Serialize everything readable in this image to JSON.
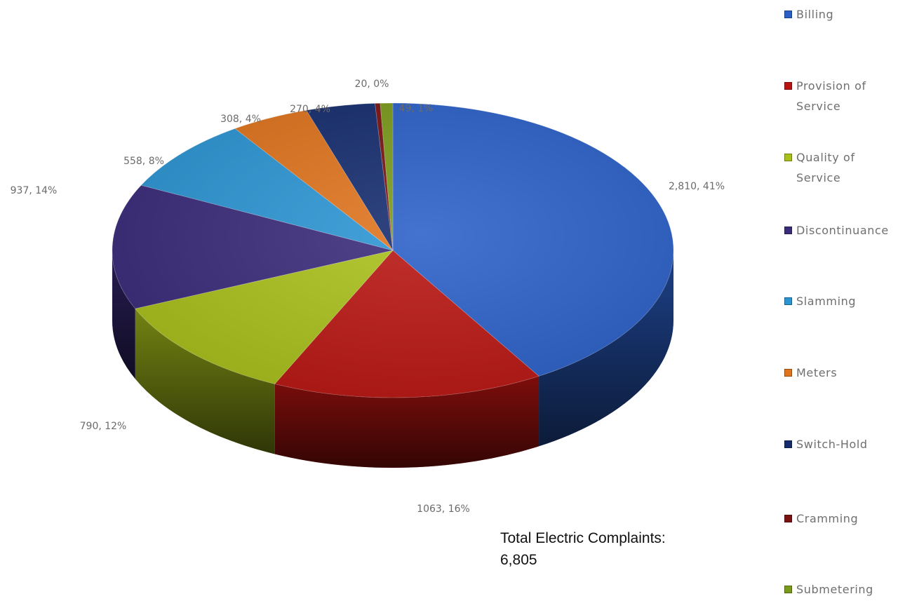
{
  "chart_data": {
    "type": "pie",
    "title": "",
    "total_label": "Total Electric Complaints:",
    "total_value": "6,805",
    "slices": [
      {
        "name": "Billing",
        "value": 2810,
        "percent": 41,
        "data_label": "2,810, 41%",
        "color": "#2a5fc8"
      },
      {
        "name": "Provision of Service",
        "value": 1063,
        "percent": 16,
        "data_label": "1063, 16%",
        "color": "#b81410"
      },
      {
        "name": "Quality of Service",
        "value": 790,
        "percent": 12,
        "data_label": "790, 12%",
        "color": "#a9c01a"
      },
      {
        "name": "Discontinuance",
        "value": 937,
        "percent": 14,
        "data_label": "937, 14%",
        "color": "#3a2a7a"
      },
      {
        "name": "Slamming",
        "value": 558,
        "percent": 8,
        "data_label": "558, 8%",
        "color": "#2b95d4"
      },
      {
        "name": "Meters",
        "value": 308,
        "percent": 4,
        "data_label": "308, 4%",
        "color": "#e0731c"
      },
      {
        "name": "Switch-Hold",
        "value": 270,
        "percent": 4,
        "data_label": "270, 4%",
        "color": "#142c6e"
      },
      {
        "name": "Cramming",
        "value": 20,
        "percent": 0,
        "data_label": "20, 0%",
        "color": "#7a1010"
      },
      {
        "name": "Submetering",
        "value": 49,
        "percent": 1,
        "data_label": "49, 1%",
        "color": "#7a9a1a"
      }
    ],
    "legend_position": "right"
  }
}
